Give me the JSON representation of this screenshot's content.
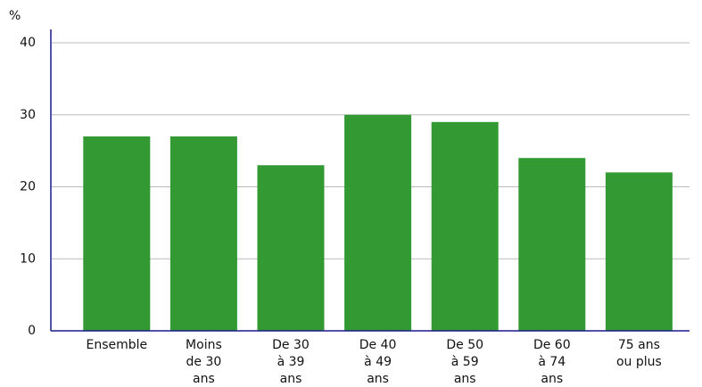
{
  "chart_data": {
    "type": "bar",
    "y_label": "%",
    "categories": [
      [
        "Ensemble"
      ],
      [
        "Moins",
        "de 30",
        "ans"
      ],
      [
        "De 30",
        "à 39",
        "ans"
      ],
      [
        "De 40",
        "à 49",
        "ans"
      ],
      [
        "De 50",
        "à 59",
        "ans"
      ],
      [
        "De 60",
        "à 74",
        "ans"
      ],
      [
        "75 ans",
        "ou plus"
      ]
    ],
    "values": [
      27,
      27,
      23,
      30,
      29,
      24,
      22
    ],
    "color": "#339933",
    "ylim": [
      0,
      40
    ],
    "yticks": [
      0,
      10,
      20,
      30,
      40
    ],
    "grid": true
  }
}
